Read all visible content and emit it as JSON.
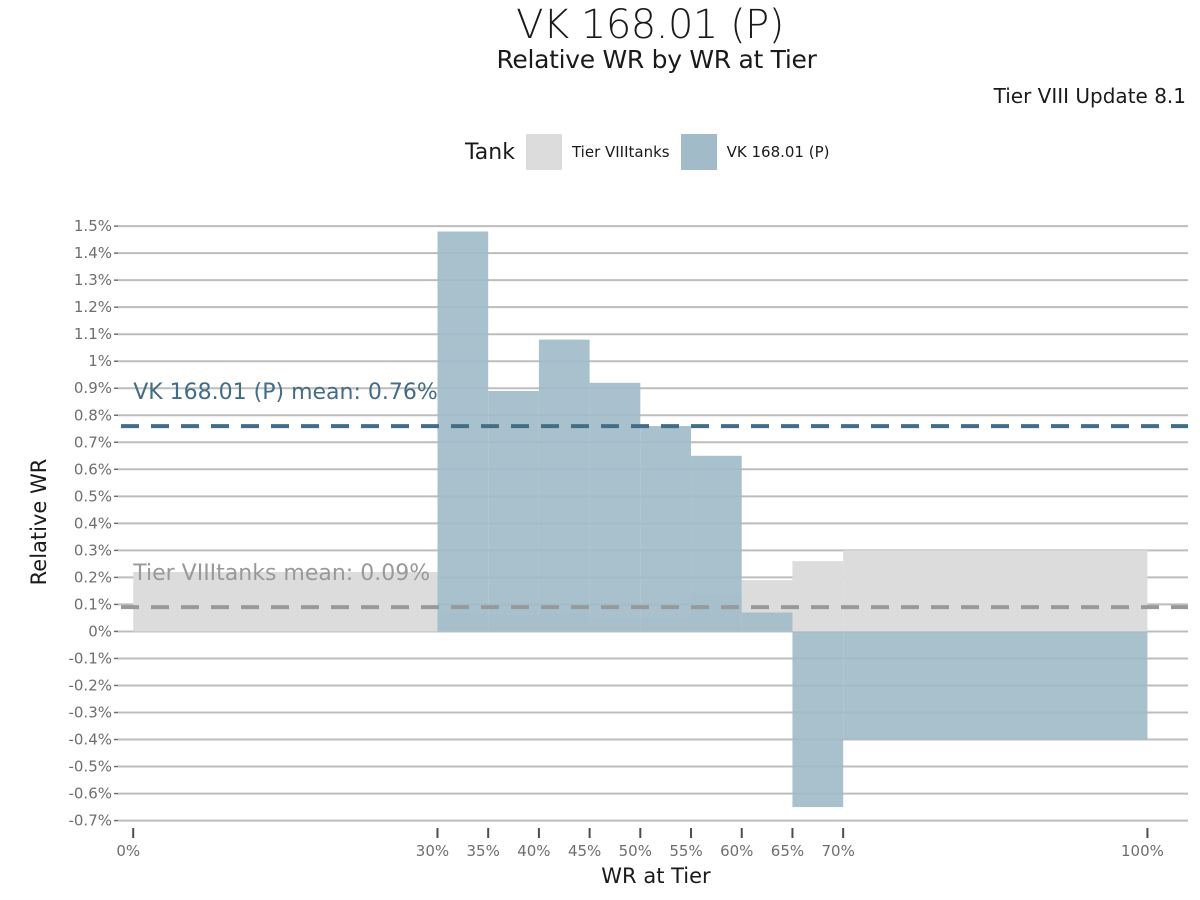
{
  "chart_data": {
    "type": "bar",
    "title": "VK 168.01 (P)",
    "subtitle": "Relative WR by WR at Tier",
    "caption": "Tier VIII Update 8.1",
    "xlabel": "WR at Tier",
    "ylabel": "Relative WR",
    "legend": {
      "title": "Tank",
      "position": "top",
      "entries": [
        {
          "label": "Tier VIIItanks",
          "color": "#dcdcdc"
        },
        {
          "label": "VK 168.01 (P)",
          "color": "#a2bbc9"
        }
      ]
    },
    "x_ticks": [
      "0%",
      "30%",
      "35%",
      "40%",
      "45%",
      "50%",
      "55%",
      "60%",
      "65%",
      "70%",
      "100%"
    ],
    "y_ticks": [
      "-0.7%",
      "-0.6%",
      "-0.5%",
      "-0.4%",
      "-0.3%",
      "-0.2%",
      "-0.1%",
      "0%",
      "0.1%",
      "0.2%",
      "0.3%",
      "0.4%",
      "0.5%",
      "0.6%",
      "0.7%",
      "0.8%",
      "0.9%",
      "1%",
      "1.1%",
      "1.2%",
      "1.3%",
      "1.4%",
      "1.5%"
    ],
    "xlim": [
      -1.5,
      104
    ],
    "ylim": [
      -0.72,
      1.53
    ],
    "grid": true,
    "series": [
      {
        "name": "Tier VIIItanks",
        "color": "#dcdcdc",
        "mean": 0.09,
        "mean_label": "Tier VIIItanks mean: 0.09%",
        "mean_color": "#999999",
        "bins": [
          {
            "x0": 0,
            "x1": 30,
            "value": 0.22
          },
          {
            "x0": 30,
            "x1": 35,
            "value": 0.07
          },
          {
            "x0": 35,
            "x1": 40,
            "value": 0.06
          },
          {
            "x0": 40,
            "x1": 45,
            "value": 0.07
          },
          {
            "x0": 45,
            "x1": 50,
            "value": 0.05
          },
          {
            "x0": 50,
            "x1": 55,
            "value": 0.05
          },
          {
            "x0": 55,
            "x1": 60,
            "value": 0.14
          },
          {
            "x0": 60,
            "x1": 65,
            "value": 0.19
          },
          {
            "x0": 65,
            "x1": 70,
            "value": 0.26
          },
          {
            "x0": 70,
            "x1": 100,
            "value": 0.3
          }
        ]
      },
      {
        "name": "VK 168.01 (P)",
        "color": "#a2bbc9",
        "mean": 0.76,
        "mean_label": "VK 168.01 (P) mean: 0.76%",
        "mean_color": "#436d86",
        "bins": [
          {
            "x0": 30,
            "x1": 35,
            "value": 1.48
          },
          {
            "x0": 35,
            "x1": 40,
            "value": 0.89
          },
          {
            "x0": 40,
            "x1": 45,
            "value": 1.08
          },
          {
            "x0": 45,
            "x1": 50,
            "value": 0.92
          },
          {
            "x0": 50,
            "x1": 55,
            "value": 0.76
          },
          {
            "x0": 55,
            "x1": 60,
            "value": 0.65
          },
          {
            "x0": 60,
            "x1": 65,
            "value": 0.07
          },
          {
            "x0": 65,
            "x1": 70,
            "value": -0.65
          },
          {
            "x0": 70,
            "x1": 100,
            "value": -0.4
          }
        ]
      }
    ]
  }
}
